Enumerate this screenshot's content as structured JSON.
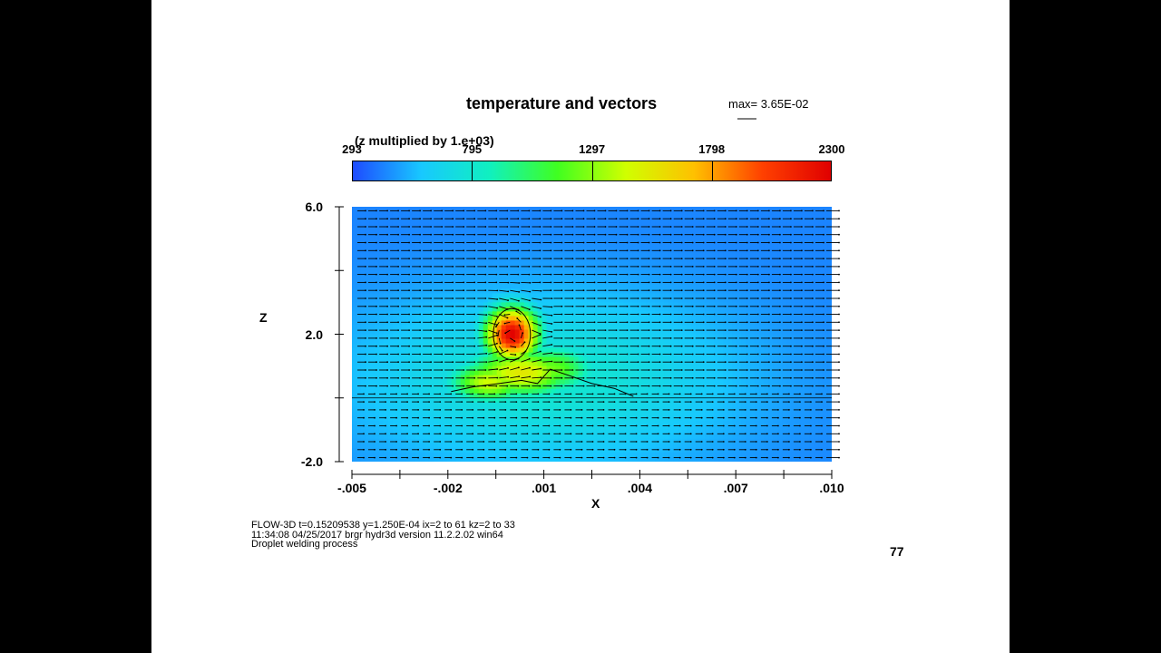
{
  "chart_data": {
    "type": "heatmap",
    "title": "temperature and vectors",
    "max_vector_label": "max= 3.65E-02",
    "z_multiplier_note": "(z multiplied by  1.e+03)",
    "xlabel": "X",
    "ylabel": "Z",
    "xlim": [
      -0.005,
      0.01
    ],
    "ylim": [
      -2.0,
      6.0
    ],
    "x_ticks": [
      {
        "value": -0.005,
        "label": "-.005"
      },
      {
        "value": -0.002,
        "label": "-.002"
      },
      {
        "value": 0.001,
        "label": ".001"
      },
      {
        "value": 0.004,
        "label": ".004"
      },
      {
        "value": 0.007,
        "label": ".007"
      },
      {
        "value": 0.01,
        "label": ".010"
      }
    ],
    "y_ticks": [
      {
        "value": 6.0,
        "label": "6.0"
      },
      {
        "value": 2.0,
        "label": "2.0"
      },
      {
        "value": -2.0,
        "label": "-2.0"
      }
    ],
    "colorbar": {
      "min": 293,
      "max": 2300,
      "ticks": [
        {
          "value": 293,
          "label": "293"
        },
        {
          "value": 795,
          "label": "795"
        },
        {
          "value": 1297,
          "label": "1297"
        },
        {
          "value": 1798,
          "label": "1798"
        },
        {
          "value": 2300,
          "label": "2300"
        }
      ],
      "colors": [
        "#1e4bff",
        "#18c8ff",
        "#10f0c0",
        "#40ff20",
        "#d0ff00",
        "#ffc000",
        "#ff4000",
        "#e00000"
      ]
    },
    "background_value": 420,
    "field_sources": [
      {
        "x": 0.0,
        "z": 2.0,
        "value": 2300,
        "sx": 0.0006,
        "sz": 0.6
      },
      {
        "x": 0.0003,
        "z": 0.8,
        "value": 1550,
        "sx": 0.0012,
        "sz": 0.55
      },
      {
        "x": -0.0007,
        "z": 0.5,
        "value": 1450,
        "sx": 0.0009,
        "sz": 0.45
      },
      {
        "x": 0.0012,
        "z": 0.9,
        "value": 1250,
        "sx": 0.001,
        "sz": 0.55
      },
      {
        "x": 0.001,
        "z": 0.6,
        "value": 800,
        "sx": 0.0042,
        "sz": 1.9
      },
      {
        "x": 0.0025,
        "z": 0.7,
        "value": 480,
        "sx": 0.0055,
        "sz": 2.6
      }
    ],
    "droplet": {
      "x": 0.0,
      "z": 2.0,
      "radius_x": 0.00058,
      "radius_z": 0.8
    },
    "substrate_surface_z": 0.0,
    "bead_profile": [
      {
        "x": -0.0019,
        "z": 0.2
      },
      {
        "x": -0.0012,
        "z": 0.35
      },
      {
        "x": -0.0004,
        "z": 0.45
      },
      {
        "x": 0.0003,
        "z": 0.55
      },
      {
        "x": 0.0008,
        "z": 0.45
      },
      {
        "x": 0.0012,
        "z": 0.9
      },
      {
        "x": 0.0018,
        "z": 0.7
      },
      {
        "x": 0.0025,
        "z": 0.45
      },
      {
        "x": 0.0032,
        "z": 0.3
      },
      {
        "x": 0.0038,
        "z": 0.05
      }
    ],
    "vector_grid": {
      "nx": 44,
      "nz": 32
    }
  },
  "footer": {
    "line1": "FLOW-3D  t=0.15209538  y=1.250E-04  ix=2 to 61  kz=2 to 33",
    "line2": "11:34:08  04/25/2017 brgr       hydr3d    version  11.2.2.02 win64",
    "line3": "Droplet welding process"
  },
  "page_number": "77"
}
